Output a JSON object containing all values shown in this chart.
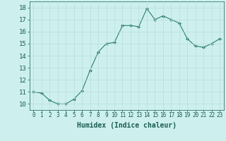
{
  "x": [
    0,
    1,
    2,
    3,
    4,
    5,
    6,
    7,
    8,
    9,
    10,
    11,
    12,
    13,
    14,
    15,
    16,
    17,
    18,
    19,
    20,
    21,
    22,
    23
  ],
  "y": [
    11.0,
    10.9,
    10.3,
    10.0,
    10.0,
    10.4,
    11.1,
    12.8,
    14.3,
    15.0,
    15.1,
    16.5,
    16.5,
    16.4,
    17.9,
    17.0,
    17.3,
    17.0,
    16.7,
    15.4,
    14.8,
    14.7,
    15.0,
    15.4
  ],
  "xlabel": "Humidex (Indice chaleur)",
  "ylabel": "",
  "xlim": [
    -0.5,
    23.5
  ],
  "ylim": [
    9.5,
    18.5
  ],
  "yticks": [
    10,
    11,
    12,
    13,
    14,
    15,
    16,
    17,
    18
  ],
  "xticks": [
    0,
    1,
    2,
    3,
    4,
    5,
    6,
    7,
    8,
    9,
    10,
    11,
    12,
    13,
    14,
    15,
    16,
    17,
    18,
    19,
    20,
    21,
    22,
    23
  ],
  "line_color": "#2e7d6e",
  "marker_color": "#2e7d6e",
  "bg_plot": "#cdf0ee",
  "bg_fig": "#cdf0ee",
  "grid_color": "#b8ddd9",
  "xlabel_color": "#1a5c52",
  "tick_color": "#1a5c52",
  "xlabel_fontsize": 7,
  "ytick_fontsize": 6.5,
  "xtick_fontsize": 5.5
}
